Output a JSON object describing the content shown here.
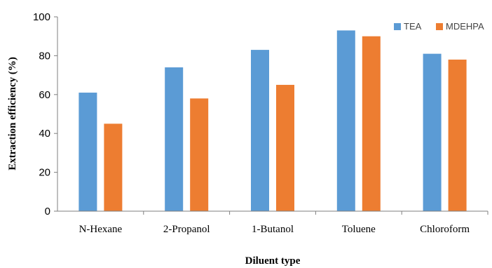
{
  "chart_data": {
    "type": "bar",
    "categories": [
      "N-Hexane",
      "2-Propanol",
      "1-Butanol",
      "Toluene",
      "Chloroform"
    ],
    "series": [
      {
        "name": "TEA",
        "color": "#5b9bd5",
        "values": [
          61,
          74,
          83,
          93,
          81
        ]
      },
      {
        "name": "MDEHPA",
        "color": "#ed7d31",
        "values": [
          45,
          58,
          65,
          90,
          78
        ]
      }
    ],
    "xlabel": "Diluent  type",
    "ylabel": "Extraction efficiency (%)",
    "ylim": [
      0,
      100
    ],
    "yticks": [
      0,
      20,
      40,
      60,
      80,
      100
    ],
    "grid": false,
    "legend_position": "top-right"
  }
}
